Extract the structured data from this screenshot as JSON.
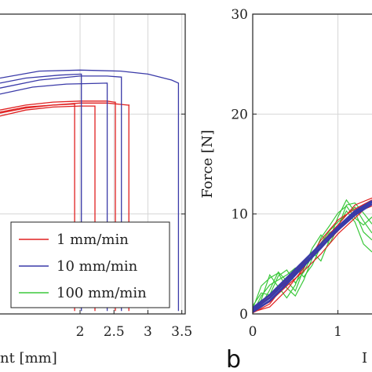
{
  "chart_data": [
    {
      "type": "line",
      "panel": "left",
      "xlabel": "nt [mm]",
      "ylabel": "",
      "xlim": [
        0.82,
        3.55
      ],
      "ylim": [
        0,
        30
      ],
      "xticks": [
        {
          "value": 2,
          "label": "2"
        },
        {
          "value": 2.5,
          "label": "2.5"
        },
        {
          "value": 3,
          "label": "3"
        },
        {
          "value": 3.5,
          "label": "3.5"
        }
      ],
      "yticks": [
        0,
        10,
        20,
        30
      ],
      "grid": true,
      "legend_position": "bottom-right",
      "colors": {
        "1 mm/min": "#e02020",
        "10 mm/min": "#3a3aa8",
        "100 mm/min": "#3cc83c"
      },
      "series": [
        {
          "name": "1 mm/min",
          "curves": [
            {
              "x": [
                0.82,
                1.2,
                1.6,
                2.0,
                2.4,
                2.7,
                2.73
              ],
              "y": [
                20.1,
                20.6,
                20.9,
                21.1,
                21.1,
                20.9,
                20.9
              ],
              "break_x": 2.72
            },
            {
              "x": [
                0.82,
                1.2,
                1.6,
                2.0,
                2.4,
                2.5
              ],
              "y": [
                20.4,
                20.9,
                21.2,
                21.3,
                21.3,
                21.2
              ],
              "break_x": 2.52
            },
            {
              "x": [
                0.82,
                1.2,
                1.6,
                2.0,
                2.2
              ],
              "y": [
                19.8,
                20.4,
                20.7,
                20.8,
                20.8
              ],
              "break_x": 2.22
            },
            {
              "x": [
                0.82,
                1.2,
                1.6,
                1.9
              ],
              "y": [
                20.2,
                20.7,
                20.9,
                21.0
              ],
              "break_x": 1.92
            }
          ]
        },
        {
          "name": "10 mm/min",
          "curves": [
            {
              "x": [
                0.82,
                1.4,
                2.0,
                2.6,
                3.0,
                3.35,
                3.45
              ],
              "y": [
                23.6,
                24.3,
                24.4,
                24.3,
                24.0,
                23.4,
                23.1
              ],
              "break_x": 3.45
            },
            {
              "x": [
                0.82,
                1.4,
                2.0,
                2.4,
                2.6
              ],
              "y": [
                22.6,
                23.4,
                23.8,
                23.8,
                23.7
              ],
              "break_x": 2.61
            },
            {
              "x": [
                0.82,
                1.3,
                1.8,
                2.4
              ],
              "y": [
                22.0,
                22.7,
                23.0,
                23.1
              ],
              "break_x": 2.4
            },
            {
              "x": [
                0.82,
                1.2,
                1.7,
                2.02
              ],
              "y": [
                23.1,
                23.6,
                23.9,
                24.0
              ],
              "break_x": 2.02
            }
          ]
        },
        {
          "name": "100 mm/min",
          "curves": []
        }
      ]
    },
    {
      "type": "line",
      "panel": "right",
      "panel_label": "b",
      "xlabel": "I",
      "ylabel": "Force [N]",
      "xlim": [
        0,
        1.4
      ],
      "ylim": [
        0,
        30
      ],
      "xticks": [
        {
          "value": 0,
          "label": "0"
        },
        {
          "value": 1,
          "label": "1"
        }
      ],
      "yticks": [
        0,
        10,
        20,
        30
      ],
      "grid": true,
      "colors": {
        "red": "#e02020",
        "blue": "#3a3aa8",
        "green": "#3cc83c"
      },
      "series": [
        {
          "color": "red",
          "curves": [
            {
              "x": [
                0,
                0.2,
                0.4,
                0.6,
                0.8,
                1.0,
                1.2,
                1.4
              ],
              "y": [
                0.3,
                1.2,
                2.8,
                4.3,
                6.0,
                8.0,
                9.6,
                11.2
              ]
            },
            {
              "x": [
                0,
                0.2,
                0.4,
                0.6,
                0.8,
                1.0,
                1.2,
                1.4
              ],
              "y": [
                0.1,
                1.0,
                3.2,
                5.2,
                7.1,
                8.9,
                10.9,
                11.6
              ]
            },
            {
              "x": [
                0,
                0.2,
                0.4,
                0.6,
                0.8,
                1.0,
                1.2,
                1.4
              ],
              "y": [
                0.5,
                1.7,
                3.5,
                5.0,
                6.6,
                8.3,
                10.1,
                10.8
              ]
            },
            {
              "x": [
                0,
                0.2,
                0.4,
                0.6,
                0.8,
                1.0,
                1.2,
                1.4
              ],
              "y": [
                0.2,
                0.7,
                2.4,
                4.6,
                7.4,
                9.4,
                10.5,
                11.4
              ]
            }
          ]
        },
        {
          "color": "blue",
          "curves": [
            {
              "x": [
                0,
                0.2,
                0.4,
                0.6,
                0.8,
                1.0,
                1.2,
                1.4
              ],
              "y": [
                0.4,
                1.6,
                3.3,
                5.0,
                6.7,
                8.4,
                9.9,
                11.0
              ]
            },
            {
              "x": [
                0,
                0.2,
                0.4,
                0.6,
                0.8,
                1.0,
                1.2,
                1.4
              ],
              "y": [
                0.2,
                1.3,
                3.0,
                4.8,
                6.6,
                8.5,
                10.1,
                11.2
              ]
            },
            {
              "x": [
                0,
                0.2,
                0.4,
                0.6,
                0.8,
                1.0,
                1.2,
                1.4
              ],
              "y": [
                0.6,
                1.9,
                3.6,
                5.3,
                7.0,
                8.7,
                10.3,
                11.3
              ]
            }
          ]
        },
        {
          "color": "green",
          "curves": [
            {
              "x": [
                0,
                0.1,
                0.2,
                0.3,
                0.4,
                0.5,
                0.6,
                0.7,
                0.8,
                0.9,
                1.0,
                1.1,
                1.2,
                1.3,
                1.4
              ],
              "y": [
                0.5,
                2.8,
                3.6,
                4.1,
                2.6,
                1.8,
                3.4,
                5.6,
                7.6,
                8.8,
                10.1,
                10.8,
                9.6,
                8.9,
                9.7
              ]
            },
            {
              "x": [
                0,
                0.1,
                0.2,
                0.3,
                0.4,
                0.5,
                0.6,
                0.7,
                0.8,
                0.9,
                1.0,
                1.1,
                1.2,
                1.3,
                1.4
              ],
              "y": [
                0.2,
                1.4,
                3.9,
                2.7,
                1.6,
                2.9,
                5.1,
                6.2,
                5.3,
                7.4,
                9.7,
                11.4,
                10.2,
                8.2,
                7.4
              ]
            },
            {
              "x": [
                0,
                0.1,
                0.2,
                0.3,
                0.4,
                0.5,
                0.6,
                0.7,
                0.8,
                0.9,
                1.0,
                1.1,
                1.2,
                1.3,
                1.4
              ],
              "y": [
                0.8,
                2.1,
                1.9,
                3.8,
                4.4,
                3.1,
                4.2,
                5.9,
                7.1,
                8.3,
                9.2,
                9.9,
                10.7,
                9.3,
                8.1
              ]
            },
            {
              "x": [
                0,
                0.1,
                0.2,
                0.3,
                0.4,
                0.5,
                0.6,
                0.7,
                0.8,
                0.9,
                1.0,
                1.1,
                1.2,
                1.3,
                1.4
              ],
              "y": [
                0.1,
                1.8,
                2.9,
                3.4,
                3.9,
                4.6,
                3.7,
                4.9,
                6.8,
                8.1,
                8.7,
                10.3,
                9.2,
                7.0,
                6.2
              ]
            },
            {
              "x": [
                0,
                0.1,
                0.2,
                0.3,
                0.4,
                0.5,
                0.6,
                0.7,
                0.8,
                0.9,
                1.0,
                1.1,
                1.2,
                1.3,
                1.4
              ],
              "y": [
                0.3,
                0.9,
                2.4,
                4.2,
                3.3,
                2.3,
                4.5,
                6.6,
                7.9,
                7.0,
                8.6,
                10.9,
                11.1,
                10.1,
                9.0
              ]
            }
          ]
        }
      ]
    }
  ]
}
